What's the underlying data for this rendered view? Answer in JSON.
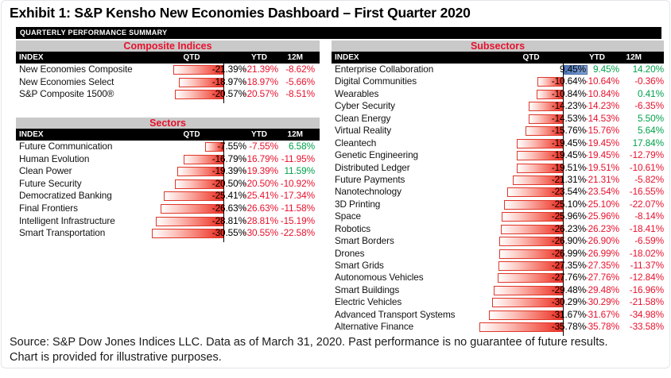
{
  "title": "Exhibit 1: S&P Kensho New Economies Dashboard – First Quarter 2020",
  "summary_bar": "QUARTERLY PERFORMANCE SUMMARY",
  "columns": [
    "INDEX",
    "QTD",
    "YTD",
    "12M"
  ],
  "tables": [
    {
      "key": "composite",
      "title": "Composite Indices",
      "rows": [
        {
          "name": "New Economies Composite",
          "qtd": -21.39,
          "qtd_label": "-21.39%",
          "ytd": "-21.39%",
          "m12": "-8.62%"
        },
        {
          "name": "New Economies Select",
          "qtd": -18.97,
          "qtd_label": "-18.97%",
          "ytd": "-18.97%",
          "m12": "-5.66%"
        },
        {
          "name": "S&P Composite 1500®",
          "qtd": -20.57,
          "qtd_label": "-20.57%",
          "ytd": "-20.57%",
          "m12": "-8.51%"
        }
      ]
    },
    {
      "key": "sectors",
      "title": "Sectors",
      "rows": [
        {
          "name": "Future Communication",
          "qtd": -7.55,
          "qtd_label": "-7.55%",
          "ytd": "-7.55%",
          "m12": "6.58%"
        },
        {
          "name": "Human Evolution",
          "qtd": -16.79,
          "qtd_label": "-16.79%",
          "ytd": "-16.79%",
          "m12": "-11.95%"
        },
        {
          "name": "Clean Power",
          "qtd": -19.39,
          "qtd_label": "-19.39%",
          "ytd": "-19.39%",
          "m12": "11.59%"
        },
        {
          "name": "Future Security",
          "qtd": -20.5,
          "qtd_label": "-20.50%",
          "ytd": "-20.50%",
          "m12": "-10.92%"
        },
        {
          "name": "Democratized Banking",
          "qtd": -25.41,
          "qtd_label": "-25.41%",
          "ytd": "-25.41%",
          "m12": "-17.34%"
        },
        {
          "name": "Final Frontiers",
          "qtd": -26.63,
          "qtd_label": "-26.63%",
          "ytd": "-26.63%",
          "m12": "-11.58%"
        },
        {
          "name": "Intelligent Infrastructure",
          "qtd": -28.81,
          "qtd_label": "-28.81%",
          "ytd": "-28.81%",
          "m12": "-15.19%"
        },
        {
          "name": "Smart Transportation",
          "qtd": -30.55,
          "qtd_label": "-30.55%",
          "ytd": "-30.55%",
          "m12": "-22.58%"
        }
      ]
    },
    {
      "key": "subsectors",
      "title": "Subsectors",
      "rows": [
        {
          "name": "Enterprise Collaboration",
          "qtd": 9.45,
          "qtd_label": "9.45%",
          "ytd": "9.45%",
          "m12": "14.20%"
        },
        {
          "name": "Digital Communities",
          "qtd": -10.64,
          "qtd_label": "-10.64%",
          "ytd": "-10.64%",
          "m12": "-0.36%"
        },
        {
          "name": "Wearables",
          "qtd": -10.84,
          "qtd_label": "-10.84%",
          "ytd": "-10.84%",
          "m12": "0.41%"
        },
        {
          "name": "Cyber Security",
          "qtd": -14.23,
          "qtd_label": "-14.23%",
          "ytd": "-14.23%",
          "m12": "-6.35%"
        },
        {
          "name": "Clean Energy",
          "qtd": -14.53,
          "qtd_label": "-14.53%",
          "ytd": "-14.53%",
          "m12": "5.50%"
        },
        {
          "name": "Virtual Reality",
          "qtd": -15.76,
          "qtd_label": "-15.76%",
          "ytd": "-15.76%",
          "m12": "5.64%"
        },
        {
          "name": "Cleantech",
          "qtd": -19.45,
          "qtd_label": "-19.45%",
          "ytd": "-19.45%",
          "m12": "17.84%"
        },
        {
          "name": "Genetic Engineering",
          "qtd": -19.45,
          "qtd_label": "-19.45%",
          "ytd": "-19.45%",
          "m12": "-12.79%"
        },
        {
          "name": "Distributed Ledger",
          "qtd": -19.51,
          "qtd_label": "-19.51%",
          "ytd": "-19.51%",
          "m12": "-10.61%"
        },
        {
          "name": "Future Payments",
          "qtd": -21.31,
          "qtd_label": "-21.31%",
          "ytd": "-21.31%",
          "m12": "-5.82%"
        },
        {
          "name": "Nanotechnology",
          "qtd": -23.54,
          "qtd_label": "-23.54%",
          "ytd": "-23.54%",
          "m12": "-16.55%"
        },
        {
          "name": "3D Printing",
          "qtd": -25.1,
          "qtd_label": "-25.10%",
          "ytd": "-25.10%",
          "m12": "-22.07%"
        },
        {
          "name": "Space",
          "qtd": -25.96,
          "qtd_label": "-25.96%",
          "ytd": "-25.96%",
          "m12": "-8.14%"
        },
        {
          "name": "Robotics",
          "qtd": -26.23,
          "qtd_label": "-26.23%",
          "ytd": "-26.23%",
          "m12": "-18.41%"
        },
        {
          "name": "Smart Borders",
          "qtd": -26.9,
          "qtd_label": "-26.90%",
          "ytd": "-26.90%",
          "m12": "-6.59%"
        },
        {
          "name": "Drones",
          "qtd": -26.99,
          "qtd_label": "-26.99%",
          "ytd": "-26.99%",
          "m12": "-18.02%"
        },
        {
          "name": "Smart Grids",
          "qtd": -27.35,
          "qtd_label": "-27.35%",
          "ytd": "-27.35%",
          "m12": "-11.37%"
        },
        {
          "name": "Autonomous Vehicles",
          "qtd": -27.76,
          "qtd_label": "-27.76%",
          "ytd": "-27.76%",
          "m12": "-12.84%"
        },
        {
          "name": "Smart Buildings",
          "qtd": -29.48,
          "qtd_label": "-29.48%",
          "ytd": "-29.48%",
          "m12": "-16.96%"
        },
        {
          "name": "Electric Vehicles",
          "qtd": -30.29,
          "qtd_label": "-30.29%",
          "ytd": "-30.29%",
          "m12": "-21.58%"
        },
        {
          "name": "Advanced Transport Systems",
          "qtd": -31.67,
          "qtd_label": "-31.67%",
          "ytd": "-31.67%",
          "m12": "-34.98%"
        },
        {
          "name": "Alternative Finance",
          "qtd": -35.78,
          "qtd_label": "-35.78%",
          "ytd": "-35.78%",
          "m12": "-33.58%"
        }
      ]
    }
  ],
  "footer": {
    "line1": "Source: S&P Dow Jones Indices LLC. Data as of March 31, 2020. Past performance is no guarantee of future results.",
    "line2": "Chart is provided for illustrative purposes."
  },
  "colors": {
    "accent_red": "#E8112D",
    "positive_green": "#00A14B",
    "negative_red": "#E8112D",
    "bar_negative_red": "#E9291E",
    "bar_positive_blue": "#4A74B8",
    "header_bg": "#000000",
    "section_bg": "#C9C9C9"
  },
  "chart_data": [
    {
      "type": "bar",
      "title": "Composite Indices",
      "unit": "%",
      "note": "QTD column rendered as in-cell data bars; negative bars extend left in red from a zero axis, positive extend right in blue",
      "categories": [
        "New Economies Composite",
        "New Economies Select",
        "S&P Composite 1500®"
      ],
      "series": [
        {
          "name": "QTD",
          "values": [
            -21.39,
            -18.97,
            -20.57
          ]
        },
        {
          "name": "YTD",
          "values": [
            -21.39,
            -18.97,
            -20.57
          ]
        },
        {
          "name": "12M",
          "values": [
            -8.62,
            -5.66,
            -8.51
          ]
        }
      ]
    },
    {
      "type": "bar",
      "title": "Sectors",
      "unit": "%",
      "categories": [
        "Future Communication",
        "Human Evolution",
        "Clean Power",
        "Future Security",
        "Democratized Banking",
        "Final Frontiers",
        "Intelligent Infrastructure",
        "Smart Transportation"
      ],
      "series": [
        {
          "name": "QTD",
          "values": [
            -7.55,
            -16.79,
            -19.39,
            -20.5,
            -25.41,
            -26.63,
            -28.81,
            -30.55
          ]
        },
        {
          "name": "YTD",
          "values": [
            -7.55,
            -16.79,
            -19.39,
            -20.5,
            -25.41,
            -26.63,
            -28.81,
            -30.55
          ]
        },
        {
          "name": "12M",
          "values": [
            6.58,
            -11.95,
            11.59,
            -10.92,
            -17.34,
            -11.58,
            -15.19,
            -22.58
          ]
        }
      ]
    },
    {
      "type": "bar",
      "title": "Subsectors",
      "unit": "%",
      "categories": [
        "Enterprise Collaboration",
        "Digital Communities",
        "Wearables",
        "Cyber Security",
        "Clean Energy",
        "Virtual Reality",
        "Cleantech",
        "Genetic Engineering",
        "Distributed Ledger",
        "Future Payments",
        "Nanotechnology",
        "3D Printing",
        "Space",
        "Robotics",
        "Smart Borders",
        "Drones",
        "Smart Grids",
        "Autonomous Vehicles",
        "Smart Buildings",
        "Electric Vehicles",
        "Advanced Transport Systems",
        "Alternative Finance"
      ],
      "series": [
        {
          "name": "QTD",
          "values": [
            9.45,
            -10.64,
            -10.84,
            -14.23,
            -14.53,
            -15.76,
            -19.45,
            -19.45,
            -19.51,
            -21.31,
            -23.54,
            -25.1,
            -25.96,
            -26.23,
            -26.9,
            -26.99,
            -27.35,
            -27.76,
            -29.48,
            -30.29,
            -31.67,
            -35.78
          ]
        },
        {
          "name": "YTD",
          "values": [
            9.45,
            -10.64,
            -10.84,
            -14.23,
            -14.53,
            -15.76,
            -19.45,
            -19.45,
            -19.51,
            -21.31,
            -23.54,
            -25.1,
            -25.96,
            -26.23,
            -26.9,
            -26.99,
            -27.35,
            -27.76,
            -29.48,
            -30.29,
            -31.67,
            -35.78
          ]
        },
        {
          "name": "12M",
          "values": [
            14.2,
            -0.36,
            0.41,
            -6.35,
            5.5,
            5.64,
            17.84,
            -12.79,
            -10.61,
            -5.82,
            -16.55,
            -22.07,
            -8.14,
            -18.41,
            -6.59,
            -18.02,
            -11.37,
            -12.84,
            -16.96,
            -21.58,
            -34.98,
            -33.58
          ]
        }
      ]
    }
  ]
}
